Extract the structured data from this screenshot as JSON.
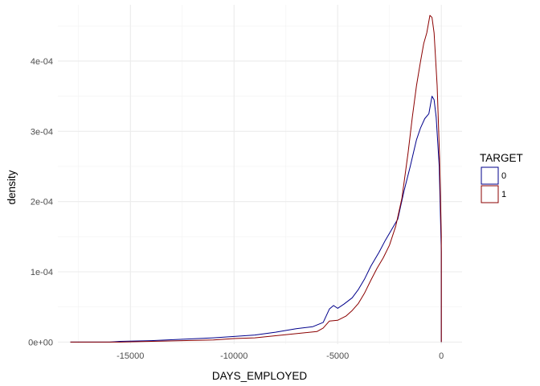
{
  "chart_data": {
    "type": "line",
    "xlabel": "DAYS_EMPLOYED",
    "ylabel": "density",
    "xlim": [
      -18500,
      1000
    ],
    "ylim": [
      -3e-06,
      0.00048
    ],
    "x_ticks": [
      -15000,
      -10000,
      -5000,
      0
    ],
    "x_tick_labels": [
      "-15000",
      "-10000",
      "-5000",
      "0"
    ],
    "y_ticks": [
      0,
      0.0001,
      0.0002,
      0.0003,
      0.0004
    ],
    "y_tick_labels": [
      "0e+00",
      "1e-04",
      "2e-04",
      "3e-04",
      "4e-04"
    ],
    "grid": true,
    "legend": {
      "title": "TARGET",
      "position": "right"
    },
    "series": [
      {
        "name": "0",
        "color": "#00008b",
        "points": [
          [
            -17900,
            0.0
          ],
          [
            -16000,
            0.0
          ],
          [
            -15500,
            1e-06
          ],
          [
            -14000,
            2e-06
          ],
          [
            -12500,
            4e-06
          ],
          [
            -11000,
            6e-06
          ],
          [
            -10000,
            8e-06
          ],
          [
            -9000,
            1e-05
          ],
          [
            -8000,
            1.4e-05
          ],
          [
            -7000,
            1.9e-05
          ],
          [
            -6200,
            2.2e-05
          ],
          [
            -5700,
            2.8e-05
          ],
          [
            -5400,
            4.7e-05
          ],
          [
            -5200,
            5.2e-05
          ],
          [
            -5000,
            4.8e-05
          ],
          [
            -4700,
            5.4e-05
          ],
          [
            -4300,
            6.3e-05
          ],
          [
            -4000,
            7.5e-05
          ],
          [
            -3700,
            9e-05
          ],
          [
            -3400,
            0.000108
          ],
          [
            -3000,
            0.000128
          ],
          [
            -2700,
            0.000145
          ],
          [
            -2400,
            0.00016
          ],
          [
            -2100,
            0.000175
          ],
          [
            -1800,
            0.000215
          ],
          [
            -1500,
            0.00025
          ],
          [
            -1200,
            0.000288
          ],
          [
            -1000,
            0.000305
          ],
          [
            -800,
            0.000318
          ],
          [
            -600,
            0.000325
          ],
          [
            -450,
            0.00035
          ],
          [
            -350,
            0.000345
          ],
          [
            -250,
            0.00032
          ],
          [
            -100,
            0.00025
          ],
          [
            0,
            0.000128
          ]
        ]
      },
      {
        "name": "1",
        "color": "#8b0000",
        "points": [
          [
            -17900,
            0.0
          ],
          [
            -16000,
            0.0
          ],
          [
            -15500,
            0.0
          ],
          [
            -14000,
            1e-06
          ],
          [
            -12500,
            2e-06
          ],
          [
            -11000,
            3e-06
          ],
          [
            -10000,
            5e-06
          ],
          [
            -9000,
            6e-06
          ],
          [
            -8000,
            9e-06
          ],
          [
            -7000,
            1.2e-05
          ],
          [
            -6000,
            1.5e-05
          ],
          [
            -5700,
            2e-05
          ],
          [
            -5400,
            3e-05
          ],
          [
            -5000,
            3.1e-05
          ],
          [
            -4600,
            3.7e-05
          ],
          [
            -4300,
            4.5e-05
          ],
          [
            -4000,
            5.5e-05
          ],
          [
            -3700,
            7e-05
          ],
          [
            -3400,
            8.8e-05
          ],
          [
            -3100,
            0.000105
          ],
          [
            -2800,
            0.00012
          ],
          [
            -2500,
            0.000138
          ],
          [
            -2200,
            0.000165
          ],
          [
            -1900,
            0.000205
          ],
          [
            -1600,
            0.00027
          ],
          [
            -1400,
            0.00032
          ],
          [
            -1200,
            0.000365
          ],
          [
            -1000,
            0.0004
          ],
          [
            -850,
            0.000425
          ],
          [
            -700,
            0.00044
          ],
          [
            -550,
            0.000465
          ],
          [
            -450,
            0.000462
          ],
          [
            -350,
            0.00044
          ],
          [
            -200,
            0.000365
          ],
          [
            -80,
            0.00026
          ],
          [
            0,
            0.00015
          ]
        ]
      }
    ]
  }
}
